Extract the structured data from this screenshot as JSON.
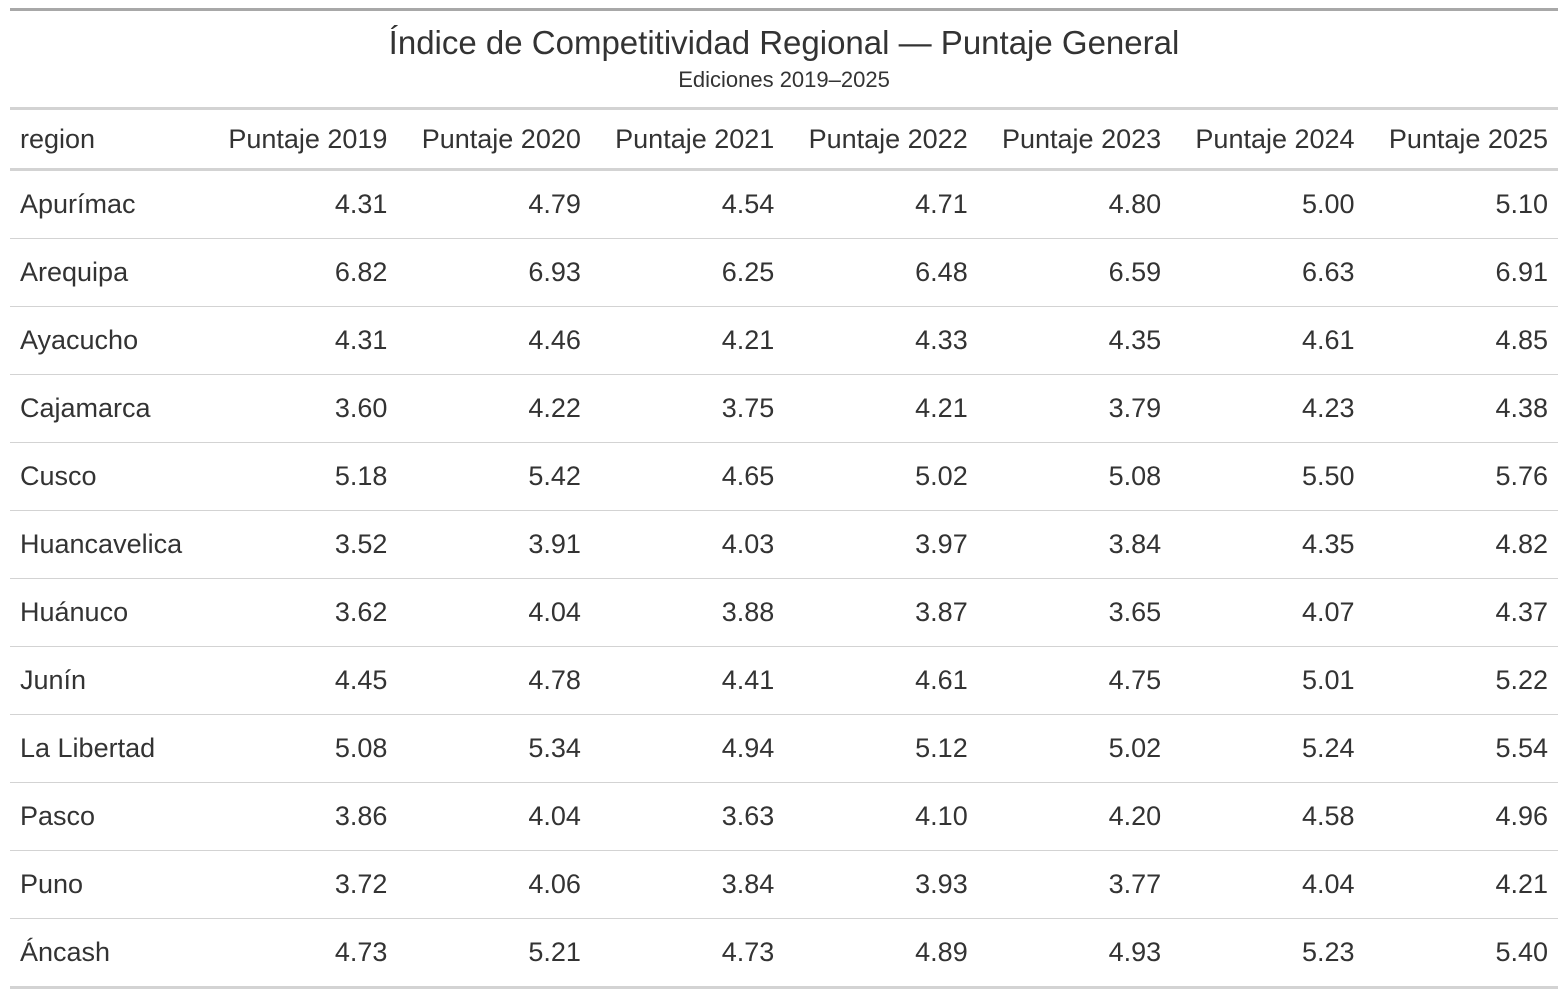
{
  "chart_data": {
    "type": "table",
    "title": "Índice de Competitividad Regional — Puntaje General",
    "subtitle": "Ediciones 2019–2025",
    "columns": [
      "region",
      "Puntaje 2019",
      "Puntaje 2020",
      "Puntaje 2021",
      "Puntaje 2022",
      "Puntaje 2023",
      "Puntaje 2024",
      "Puntaje 2025"
    ],
    "rows": [
      [
        "Apurímac",
        "4.31",
        "4.79",
        "4.54",
        "4.71",
        "4.80",
        "5.00",
        "5.10"
      ],
      [
        "Arequipa",
        "6.82",
        "6.93",
        "6.25",
        "6.48",
        "6.59",
        "6.63",
        "6.91"
      ],
      [
        "Ayacucho",
        "4.31",
        "4.46",
        "4.21",
        "4.33",
        "4.35",
        "4.61",
        "4.85"
      ],
      [
        "Cajamarca",
        "3.60",
        "4.22",
        "3.75",
        "4.21",
        "3.79",
        "4.23",
        "4.38"
      ],
      [
        "Cusco",
        "5.18",
        "5.42",
        "4.65",
        "5.02",
        "5.08",
        "5.50",
        "5.76"
      ],
      [
        "Huancavelica",
        "3.52",
        "3.91",
        "4.03",
        "3.97",
        "3.84",
        "4.35",
        "4.82"
      ],
      [
        "Huánuco",
        "3.62",
        "4.04",
        "3.88",
        "3.87",
        "3.65",
        "4.07",
        "4.37"
      ],
      [
        "Junín",
        "4.45",
        "4.78",
        "4.41",
        "4.61",
        "4.75",
        "5.01",
        "5.22"
      ],
      [
        "La Libertad",
        "5.08",
        "5.34",
        "4.94",
        "5.12",
        "5.02",
        "5.24",
        "5.54"
      ],
      [
        "Pasco",
        "3.86",
        "4.04",
        "3.63",
        "4.10",
        "4.20",
        "4.58",
        "4.96"
      ],
      [
        "Puno",
        "3.72",
        "4.06",
        "3.84",
        "3.93",
        "3.77",
        "4.04",
        "4.21"
      ],
      [
        "Áncash",
        "4.73",
        "5.21",
        "4.73",
        "4.89",
        "4.93",
        "5.23",
        "5.40"
      ]
    ]
  }
}
